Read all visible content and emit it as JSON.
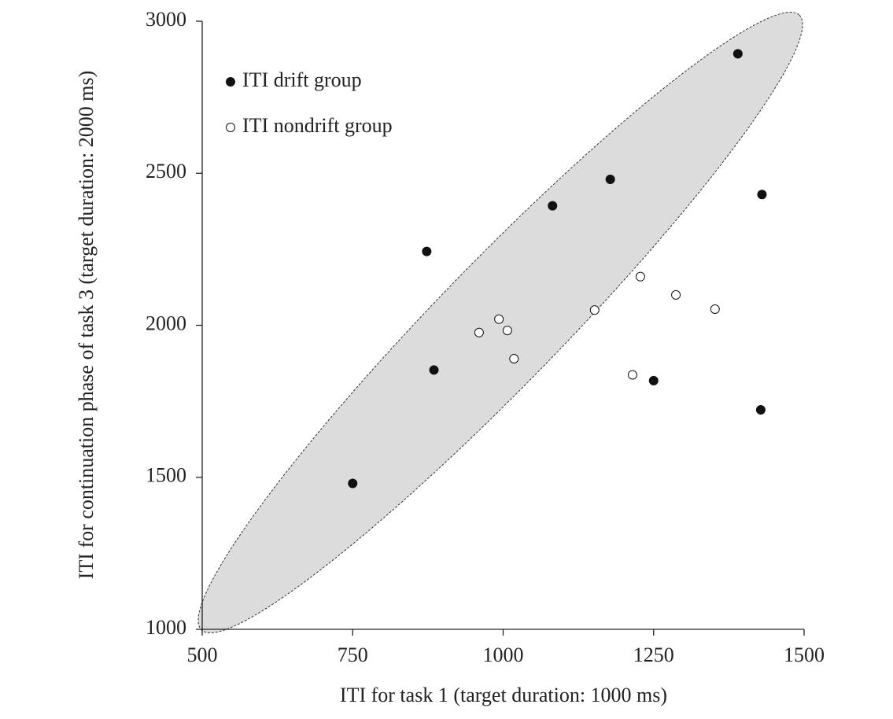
{
  "chart_data": {
    "type": "scatter",
    "xlabel": "ITI for task 1 (target duration: 1000 ms)",
    "ylabel": "ITI for continuation phase of task 3 (target duration: 2000 ms)",
    "xlim": [
      500,
      1500
    ],
    "xticks": [
      500,
      750,
      1000,
      1250,
      1500
    ],
    "ylim": [
      1000,
      3000
    ],
    "yticks": [
      1000,
      1500,
      2000,
      2500,
      3000
    ],
    "legend": "upper left",
    "series": [
      {
        "name": "ITI drift group",
        "color": "#111111",
        "x": [
          1390,
          1178,
          1082,
          1430,
          873,
          885,
          1250,
          1428,
          750
        ],
        "values": [
          2893,
          2480,
          2393,
          2430,
          2243,
          1853,
          1818,
          1722,
          1480
        ]
      },
      {
        "name": "ITI nondrift group",
        "color": "#ffffff",
        "x": [
          960,
          993,
          1007,
          1018,
          1152,
          1228,
          1287,
          1352,
          1215
        ],
        "values": [
          1976,
          2020,
          1983,
          1890,
          2050,
          2160,
          2100,
          2053,
          1837
        ]
      }
    ]
  }
}
